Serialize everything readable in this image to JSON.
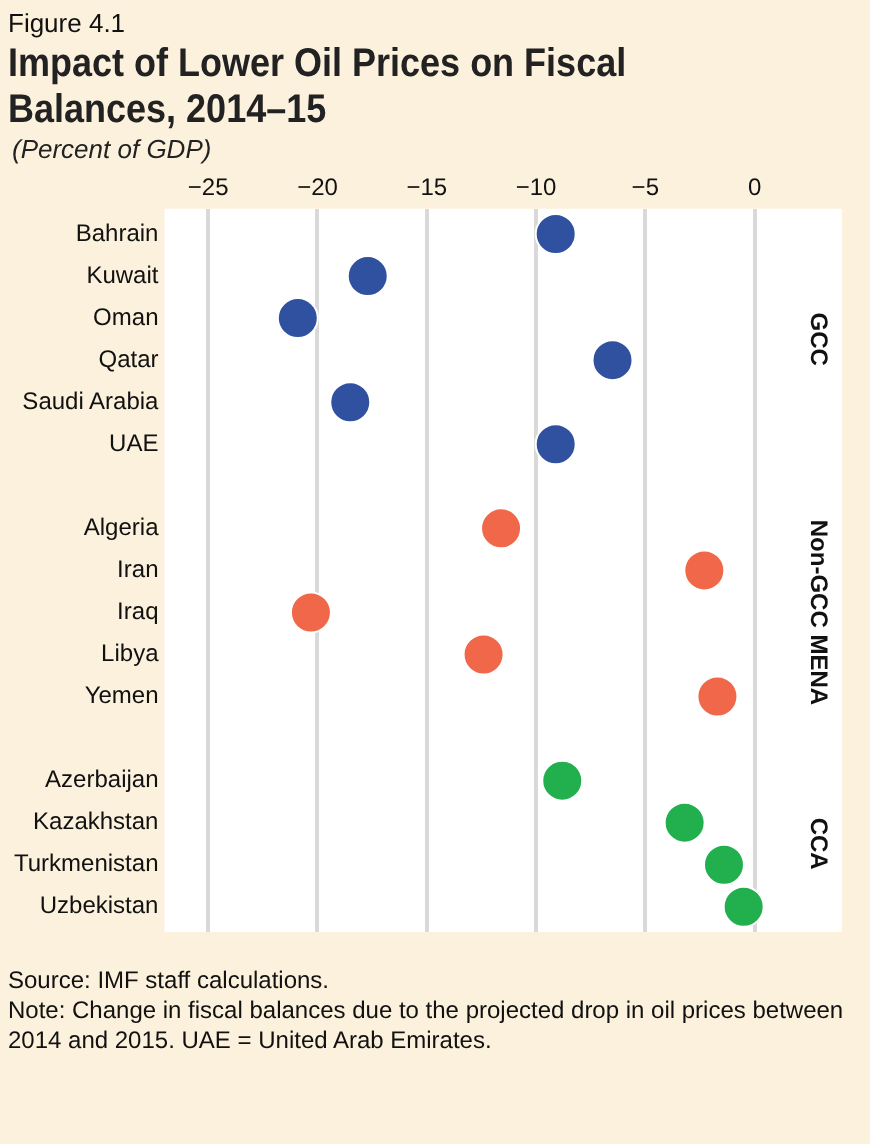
{
  "chart_data": {
    "type": "scatter",
    "orientation": "horizontal",
    "title": "Impact of Lower Oil Prices on Fiscal Balances, 2014–15",
    "subtitle": "(Percent of GDP)",
    "categories": [
      "Bahrain",
      "Kuwait",
      "Oman",
      "Qatar",
      "Saudi Arabia",
      "UAE",
      null,
      "Algeria",
      "Iran",
      "Iraq",
      "Libya",
      "Yemen",
      null,
      "Azerbaijan",
      "Kazakhstan",
      "Turkmenistan",
      "Uzbekistan"
    ],
    "series": [
      {
        "color": "#3050a0",
        "values": [
          -9.1,
          -17.7,
          -20.9,
          -6.5,
          -18.5,
          -9.1,
          null,
          null,
          null,
          null,
          null,
          null,
          null,
          null,
          null,
          null,
          null
        ]
      },
      {
        "color": "#f0674a",
        "values": [
          null,
          null,
          null,
          null,
          null,
          null,
          null,
          -11.6,
          -2.3,
          -20.3,
          -12.4,
          -1.7,
          null,
          null,
          null,
          null,
          null
        ]
      },
      {
        "color": "#22b04f",
        "values": [
          null,
          null,
          null,
          null,
          null,
          null,
          null,
          null,
          null,
          null,
          null,
          null,
          null,
          -8.8,
          -3.2,
          -1.4,
          -0.5
        ]
      }
    ],
    "xlim": [
      -27,
      4
    ],
    "xticks": [
      -25,
      -20,
      -15,
      -10,
      -5,
      0
    ],
    "grid": "x",
    "legend": false,
    "marker": "circle",
    "annotations": [
      "Figure 4.1",
      "GCC",
      "Non-GCC MENA",
      "CCA",
      "Source: IMF staff calculations.",
      "Note: Change in fiscal balances due to the projected drop in oil prices between 2014 and 2015. UAE = United Arab Emirates."
    ]
  }
}
